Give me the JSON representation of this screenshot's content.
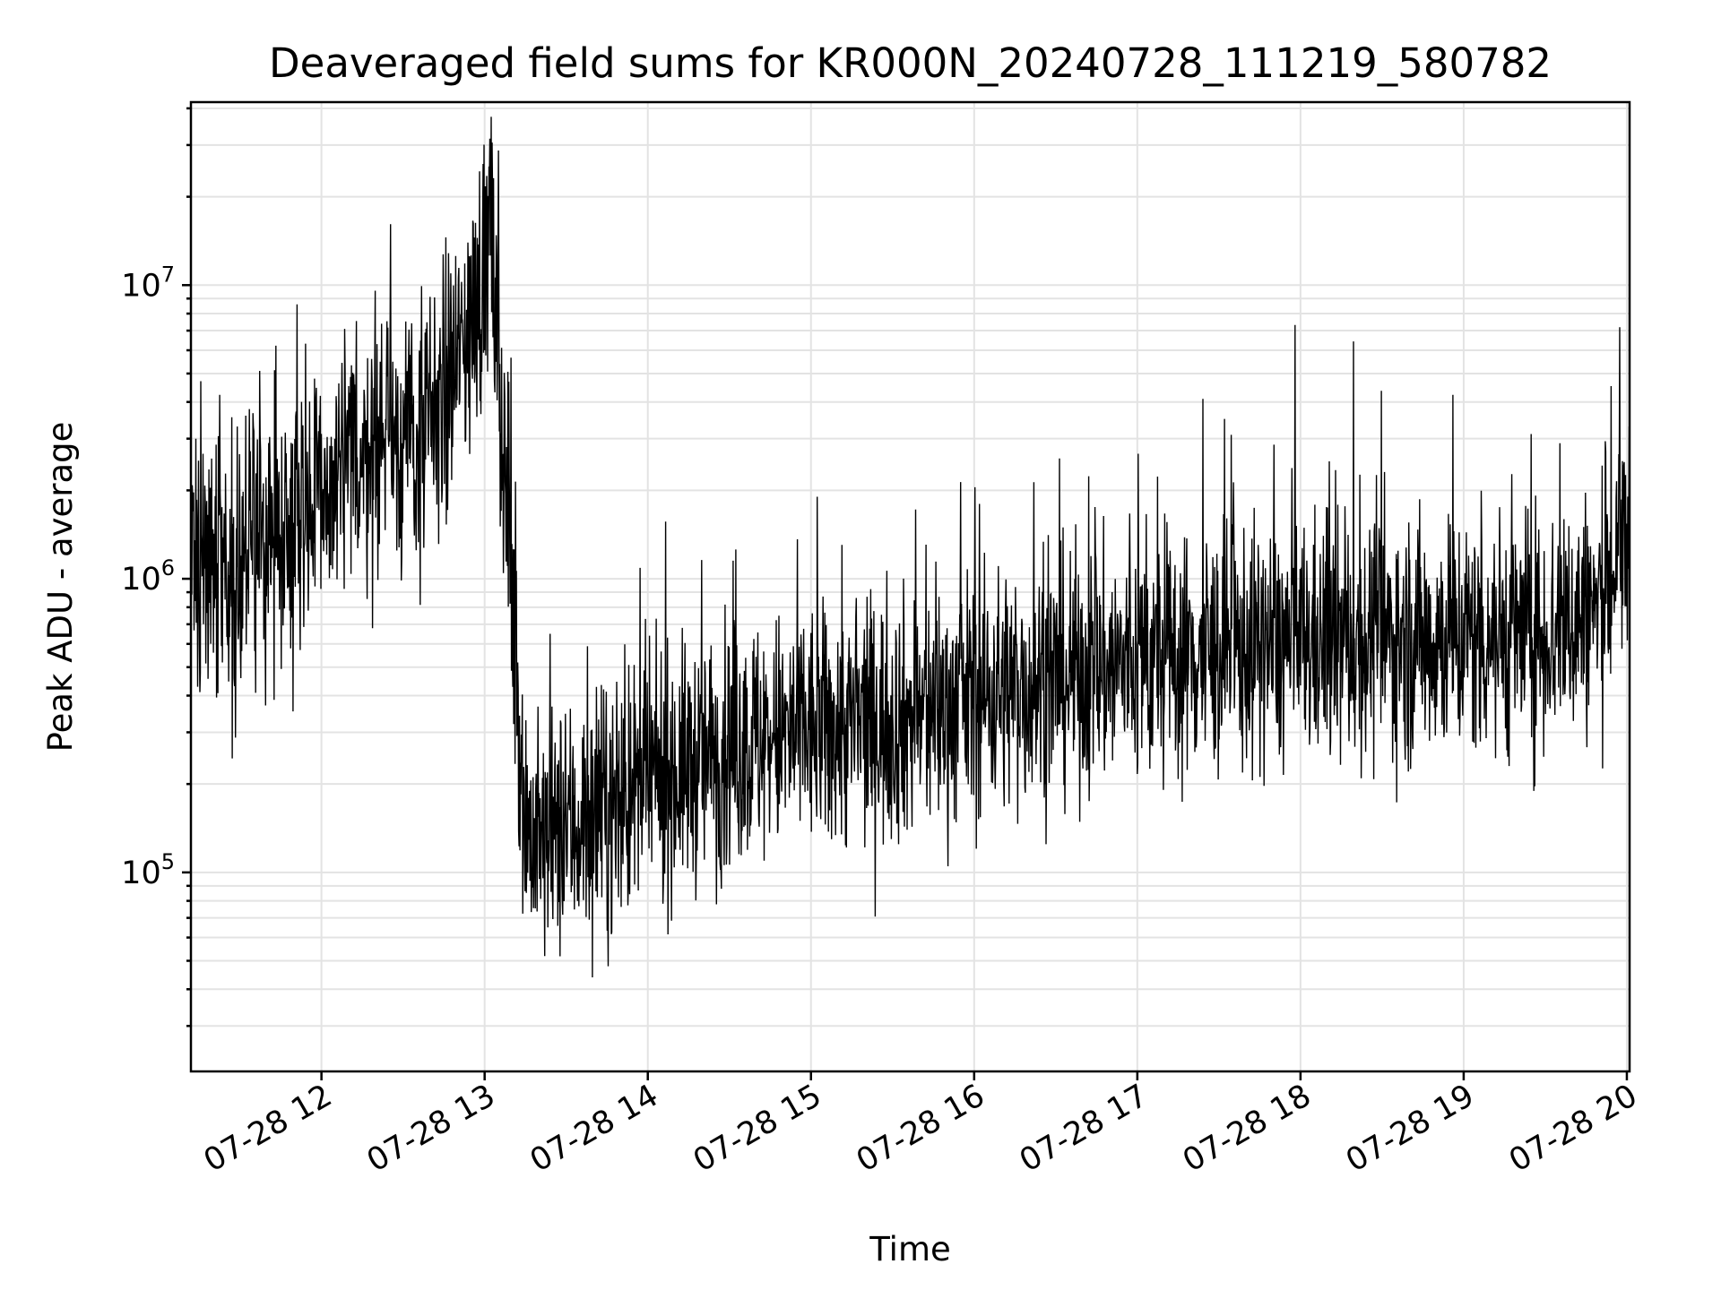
{
  "chart_data": {
    "type": "line",
    "title": "Deaveraged field sums for KR000N_20240728_111219_580782",
    "xlabel": "Time",
    "ylabel": "Peak ADU - average",
    "yscale": "log",
    "x_range": [
      "2024-07-28 11:12",
      "2024-07-28 20:01"
    ],
    "ylim": [
      21000,
      42000000
    ],
    "grid": true,
    "line_color": "#000000",
    "x_ticks": [
      {
        "value": "2024-07-28 12:00",
        "label": "07-28 12"
      },
      {
        "value": "2024-07-28 13:00",
        "label": "07-28 13"
      },
      {
        "value": "2024-07-28 14:00",
        "label": "07-28 14"
      },
      {
        "value": "2024-07-28 15:00",
        "label": "07-28 15"
      },
      {
        "value": "2024-07-28 16:00",
        "label": "07-28 16"
      },
      {
        "value": "2024-07-28 17:00",
        "label": "07-28 17"
      },
      {
        "value": "2024-07-28 18:00",
        "label": "07-28 18"
      },
      {
        "value": "2024-07-28 19:00",
        "label": "07-28 19"
      },
      {
        "value": "2024-07-28 20:00",
        "label": "07-28 20"
      }
    ],
    "y_ticks": [
      {
        "value": 100000,
        "base": "10",
        "exp": "5"
      },
      {
        "value": 1000000,
        "base": "10",
        "exp": "6"
      },
      {
        "value": 10000000,
        "base": "10",
        "exp": "7"
      }
    ],
    "series": [
      {
        "x": [
          "2024-07-28 11:12",
          "2024-07-28 11:20",
          "2024-07-28 11:27",
          "2024-07-28 11:35",
          "2024-07-28 11:42",
          "2024-07-28 11:50",
          "2024-07-28 11:57",
          "2024-07-28 12:05",
          "2024-07-28 12:12",
          "2024-07-28 12:20",
          "2024-07-28 12:27",
          "2024-07-28 12:35",
          "2024-07-28 12:42",
          "2024-07-28 12:50",
          "2024-07-28 12:57",
          "2024-07-28 13:02",
          "2024-07-28 13:06",
          "2024-07-28 13:10",
          "2024-07-28 13:15",
          "2024-07-28 13:20",
          "2024-07-28 13:30",
          "2024-07-28 13:45",
          "2024-07-28 14:00",
          "2024-07-28 14:20",
          "2024-07-28 14:40",
          "2024-07-28 15:00",
          "2024-07-28 15:20",
          "2024-07-28 15:40",
          "2024-07-28 16:00",
          "2024-07-28 16:30",
          "2024-07-28 17:00",
          "2024-07-28 17:30",
          "2024-07-28 18:00",
          "2024-07-28 18:30",
          "2024-07-28 19:00",
          "2024-07-28 19:30",
          "2024-07-28 19:50",
          "2024-07-28 20:01"
        ],
        "y": [
          1500000,
          1200000,
          1000000,
          1300000,
          1500000,
          1700000,
          1800000,
          2000000,
          2500000,
          3000000,
          3200000,
          2800000,
          3500000,
          5500000,
          8500000,
          15000000,
          4000000,
          800000,
          150000,
          120000,
          140000,
          160000,
          200000,
          240000,
          280000,
          300000,
          320000,
          340000,
          400000,
          460000,
          520000,
          560000,
          600000,
          620000,
          640000,
          650000,
          800000,
          1500000
        ]
      }
    ]
  }
}
